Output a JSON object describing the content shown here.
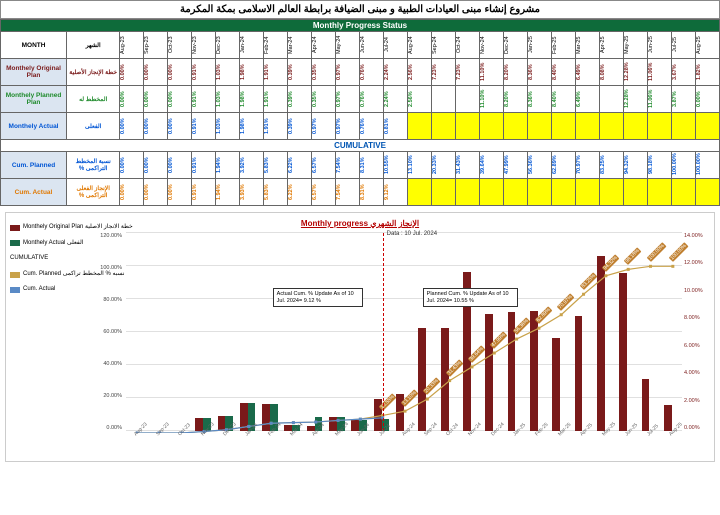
{
  "title_ar": "مشروع إنشاء مبنى العيادات الطبية و مبنى الضيافة برابطة العالم الاسلامى بمكة المكرمة",
  "status_header": "Monthly  Progress Status",
  "cumulative_header": "CUMULATIVE",
  "months": [
    "Aug-23",
    "Sep-23",
    "Oct-23",
    "Nov-23",
    "Dec-23",
    "Jan-24",
    "Feb-24",
    "Mar-24",
    "Apr-24",
    "May-24",
    "Jun-24",
    "Jul-24",
    "Aug-24",
    "Sep-24",
    "Oct-24",
    "Nov-24",
    "Dec-24",
    "Jan-25",
    "Feb-25",
    "Mar-25",
    "Apr-25",
    "May-25",
    "Jun-25",
    "Jul-25",
    "Aug-25"
  ],
  "rows": {
    "month": {
      "en": "MONTH",
      "ar": "الشهر"
    },
    "orig": {
      "en": "Monthely Original Plan",
      "ar": "خطة الإنجاز الأصلية"
    },
    "planned": {
      "en": "Monthely Planned Plan",
      "ar": "المخطط له"
    },
    "actual": {
      "en": "Monthely  Actual",
      "ar": "الفعلى"
    },
    "cum_planned": {
      "en": "Cum. Planned",
      "ar": "نسبة المخطط التراكمى %"
    },
    "cum_actual": {
      "en": "Cum. Actual",
      "ar": "الإنجاز الفعلى التراكمى %"
    }
  },
  "orig_vals": [
    "0.00%",
    "0.00%",
    "0.00%",
    "0.91%",
    "1.03%",
    "1.98%",
    "1.91%",
    "0.39%",
    "0.35%",
    "0.97%",
    "0.76%",
    "2.24%",
    "2.56%",
    "7.23%",
    "7.23%",
    "11.10%",
    "8.20%",
    "8.36%",
    "8.40%",
    "6.49%",
    "8.08%",
    "12.28%",
    "11.06%",
    "3.67%",
    "1.82%"
  ],
  "planned_vals": [
    "0.00%",
    "0.00%",
    "0.00%",
    "0.91%",
    "1.03%",
    "1.98%",
    "1.91%",
    "0.39%",
    "0.35%",
    "0.97%",
    "0.76%",
    "2.24%",
    "2.56%",
    "",
    "",
    "11.10%",
    "8.20%",
    "8.36%",
    "8.40%",
    "6.49%",
    "",
    "12.28%",
    "11.06%",
    "3.87%",
    "0.00%"
  ],
  "actual_vals": [
    "0.00%",
    "0.00%",
    "0.00%",
    "0.91%",
    "1.03%",
    "1.98%",
    "1.91%",
    "0.39%",
    "0.97%",
    "0.97%",
    "0.76%",
    "0.81%",
    "",
    "",
    "",
    "",
    "",
    "",
    "",
    "",
    "",
    "",
    "",
    "",
    ""
  ],
  "cum_planned_vals": [
    "0.00%",
    "0.00%",
    "0.00%",
    "0.91%",
    "1.94%",
    "3.92%",
    "5.83%",
    "6.22%",
    "6.57%",
    "7.54%",
    "8.31%",
    "10.55%",
    "13.10%",
    "20.33%",
    "31.43%",
    "39.64%",
    "47.99%",
    "56.36%",
    "62.89%",
    "70.97%",
    "83.25%",
    "94.32%",
    "98.18%",
    "100.00%",
    "100.00%"
  ],
  "cum_actual_vals": [
    "0.00%",
    "0.00%",
    "0.00%",
    "0.91%",
    "1.94%",
    "3.93%",
    "5.83%",
    "6.22%",
    "6.57%",
    "7.54%",
    "8.31%",
    "9.12%",
    "",
    "",
    "",
    "",
    "",
    "",
    "",
    "",
    "",
    "",
    "",
    "",
    ""
  ],
  "chart": {
    "title": "Monthly progress الإنجاز الشهري",
    "data_label": "Data : 10 Jul. 2024",
    "callout_actual": "Actual Cum. % Update As of 10 Jul. 2024= 9.12 %",
    "callout_planned": "Planned Cum. % Update As of 10 Jul. 2024= 10.55 %",
    "legend": {
      "orig": "Monthely Original Plan  خطة الانجاز الاصلية",
      "actual": "Monthely  Actual  الفعلى",
      "cum": "CUMULATIVE",
      "cum_planned": "Cum. Planned نسبه % المخطط تراكمى",
      "cum_actual": "Cum. Actual"
    },
    "colors": {
      "orig_bar": "#7a1a1a",
      "actual_bar": "#1a6a4a",
      "cum_planned_line": "#c9a24a",
      "cum_actual_line": "#5a8ac6",
      "grid": "#e0e0e0",
      "today_line": "#cc0000",
      "sec_axis": "#7a1a1a"
    },
    "y_left": {
      "min": 0,
      "max": 120,
      "step": 20,
      "suffix": "%",
      "format": ".00%"
    },
    "y_right": {
      "min": 0,
      "max": 14,
      "step": 2,
      "suffix": "%",
      "format": ".00%"
    },
    "orig_bars": [
      0,
      0,
      0,
      0.91,
      1.03,
      1.98,
      1.91,
      0.39,
      0.35,
      0.97,
      0.76,
      2.24,
      2.56,
      7.23,
      7.23,
      11.1,
      8.2,
      8.36,
      8.4,
      6.49,
      8.08,
      12.28,
      11.06,
      3.67,
      1.82
    ],
    "actual_bars": [
      0,
      0,
      0,
      0.91,
      1.03,
      1.98,
      1.91,
      0.39,
      0.97,
      0.97,
      0.76,
      0.81,
      null,
      null,
      null,
      null,
      null,
      null,
      null,
      null,
      null,
      null,
      null,
      null,
      null
    ],
    "cum_planned": [
      0,
      0,
      0,
      0.91,
      1.94,
      3.92,
      5.83,
      6.22,
      6.57,
      7.54,
      8.31,
      10.55,
      13.1,
      20.33,
      31.43,
      39.64,
      47.99,
      56.36,
      62.89,
      70.97,
      83.25,
      94.32,
      98.18,
      100,
      100
    ],
    "cum_actual": [
      0,
      0,
      0,
      0.91,
      1.94,
      3.93,
      5.83,
      6.22,
      6.57,
      7.54,
      8.31,
      9.12,
      null,
      null,
      null,
      null,
      null,
      null,
      null,
      null,
      null,
      null,
      null,
      null,
      null
    ],
    "today_index": 11
  }
}
